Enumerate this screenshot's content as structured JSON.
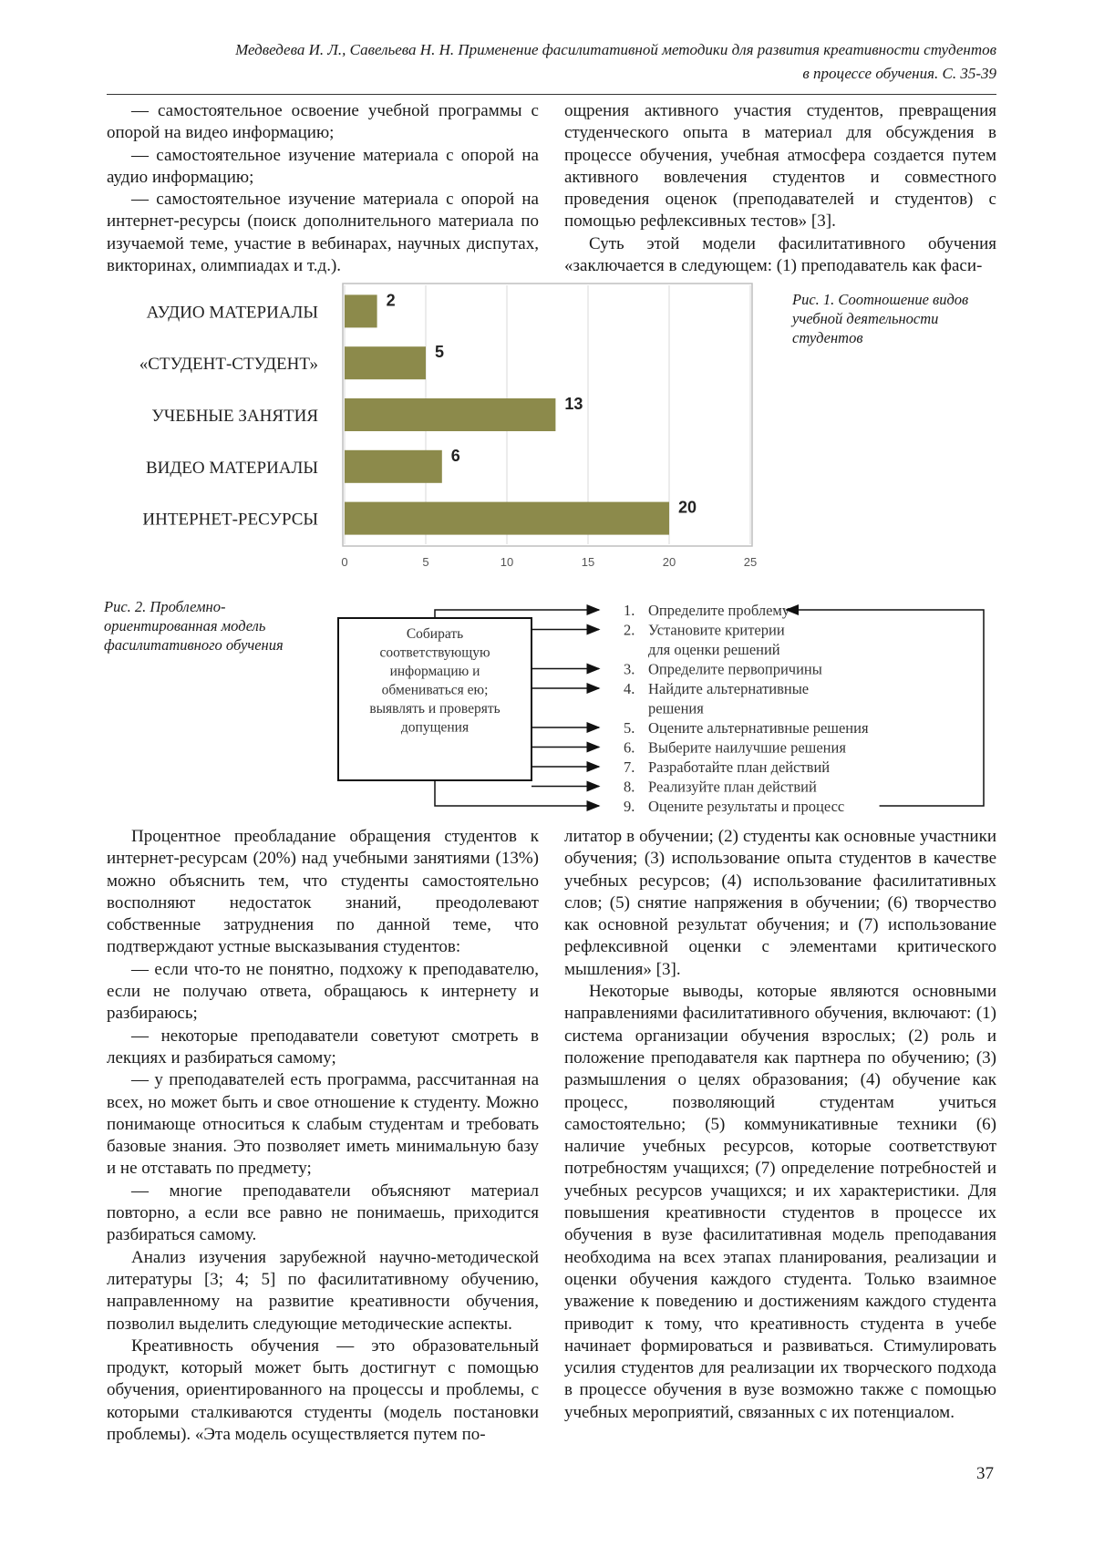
{
  "header": {
    "line1": "Медведева И. Л., Савельева Н. Н. Применение фасилитативной методики для развития креативности студентов",
    "line2": "в процессе обучения. С. 35-39"
  },
  "top": {
    "left": [
      "— самостоятельное освоение учебной программы с опорой на видео информацию;",
      "— самостоятельное изучение материала с опорой на аудио информацию;",
      "— самостоятельное изучение материала с опорой на интернет-ресурсы (поиск дополнительного материала по изучаемой теме, участие в вебинарах, научных диспутах, викторинах, олимпиадах и т.д.)."
    ],
    "right": [
      "ощрения активного участия студентов, превращения студенческого опыта в материал для обсуждения в процессе обучения, учебная атмосфера создается путем активного вовлечения студентов и совместного проведения оценок (преподавателей и студентов) с помощью рефлексивных тестов» [3].",
      "Суть этой модели фасилитативного обучения «заключается в следующем: (1) преподаватель как фаси-"
    ]
  },
  "chart_data": {
    "type": "bar",
    "orientation": "horizontal",
    "caption": "Рис. 1. Соотношение видов учебной деятельности студентов",
    "categories": [
      "АУДИО МАТЕРИАЛЫ",
      "«СТУДЕНТ-СТУДЕНТ»",
      "УЧЕБНЫЕ ЗАНЯТИЯ",
      "ВИДЕО МАТЕРИАЛЫ",
      "ИНТЕРНЕТ-РЕСУРСЫ"
    ],
    "values": [
      2,
      5,
      13,
      6,
      20
    ],
    "color": "#8c8a4b",
    "xlim": [
      0,
      25
    ],
    "xticks": [
      0,
      5,
      10,
      15,
      20,
      25
    ],
    "grid": true
  },
  "figure2": {
    "caption": "Рис. 2. Проблемно-ориентированная модель фасилитативного обучения",
    "box_lines": [
      "Собирать",
      "соответствующую",
      "информацию и",
      "обмениваться ею;",
      "выявлять и проверять",
      "допущения"
    ],
    "steps": [
      {
        "number": "1.",
        "lines": [
          "Определите проблему"
        ]
      },
      {
        "number": "2.",
        "lines": [
          "Установите критерии",
          "для оценки решений"
        ]
      },
      {
        "number": "3.",
        "lines": [
          "Определите первопричины"
        ]
      },
      {
        "number": "4.",
        "lines": [
          "Найдите альтернативные",
          "решения"
        ]
      },
      {
        "number": "5.",
        "lines": [
          "Оцените альтернативные решения"
        ]
      },
      {
        "number": "6.",
        "lines": [
          "Выберите наилучшие решения"
        ]
      },
      {
        "number": "7.",
        "lines": [
          "Разработайте план действий"
        ]
      },
      {
        "number": "8.",
        "lines": [
          "Реализуйте план действий"
        ]
      },
      {
        "number": "9.",
        "lines": [
          "Оцените результаты и процесс"
        ]
      }
    ]
  },
  "body": {
    "left": [
      "Процентное преобладание обращения студентов к интернет-ресурсам (20%) над учебными занятиями (13%) можно объяснить тем, что студенты самостоятельно восполняют недостаток знаний, преодолевают собственные затруднения по данной теме, что подтверждают устные высказывания студентов:",
      "— если что-то не понятно, подхожу к преподавателю, если не получаю ответа, обращаюсь к интернету и разбираюсь;",
      "— некоторые преподаватели советуют смотреть в лекциях и разбираться самому;",
      "— у преподавателей есть программа, рассчитанная на всех, но может быть и свое отношение к студенту. Можно понимающе относиться к слабым студентам и требовать базовые знания. Это позволяет иметь минимальную базу и не отставать по предмету;",
      "— многие преподаватели объясняют материал повторно, а если все равно не понимаешь, приходится разбираться самому.",
      "Анализ изучения зарубежной научно-методической литературы [3; 4; 5] по фасилитативному обучению, направленному на развитие креативности обучения, позволил выделить следующие методические аспекты.",
      "Креативность обучения — это образовательный продукт, который может быть достигнут с помощью обучения, ориентированного на процессы и проблемы, с которыми сталкиваются студенты (модель постановки проблемы). «Эта модель осуществляется путем по-"
    ],
    "right": [
      "литатор в обучении; (2) студенты как основные участники обучения; (3) использование опыта студентов в качестве учебных ресурсов; (4) использование фасилитативных слов; (5) снятие напряжения в обучении; (6) творчество как основной результат обучения; и (7) использование рефлексивной оценки с элементами критического мышления» [3].",
      "Некоторые выводы, которые являются основными направлениями фасилитативного обучения, включают: (1) система организации обучения взрослых; (2) роль и положение преподавателя как партнера по обучению; (3) размышления о целях образования; (4) обучение как процесс, позволяющий студентам учиться самостоятельно; (5) коммуникативные техники (6) наличие учебных ресурсов, которые соответствуют потребностям учащихся; (7) определение потребностей и учебных ресурсов учащихся; и их характеристики. Для повышения креативности студентов в процессе их обучения в вузе фасилитативная модель преподавания необходима на всех этапах планирования, реализации и оценки обучения каждого студента. Только взаимное уважение к поведению и достижениям каждого студента приводит к тому, что креативность студента в учебе начинает формироваться и развиваться. Стимулировать усилия студентов для реализации их творческого подхода в процессе обучения в вузе возможно также с помощью учебных мероприятий, связанных с их потенциалом."
    ]
  },
  "page_number": "37"
}
